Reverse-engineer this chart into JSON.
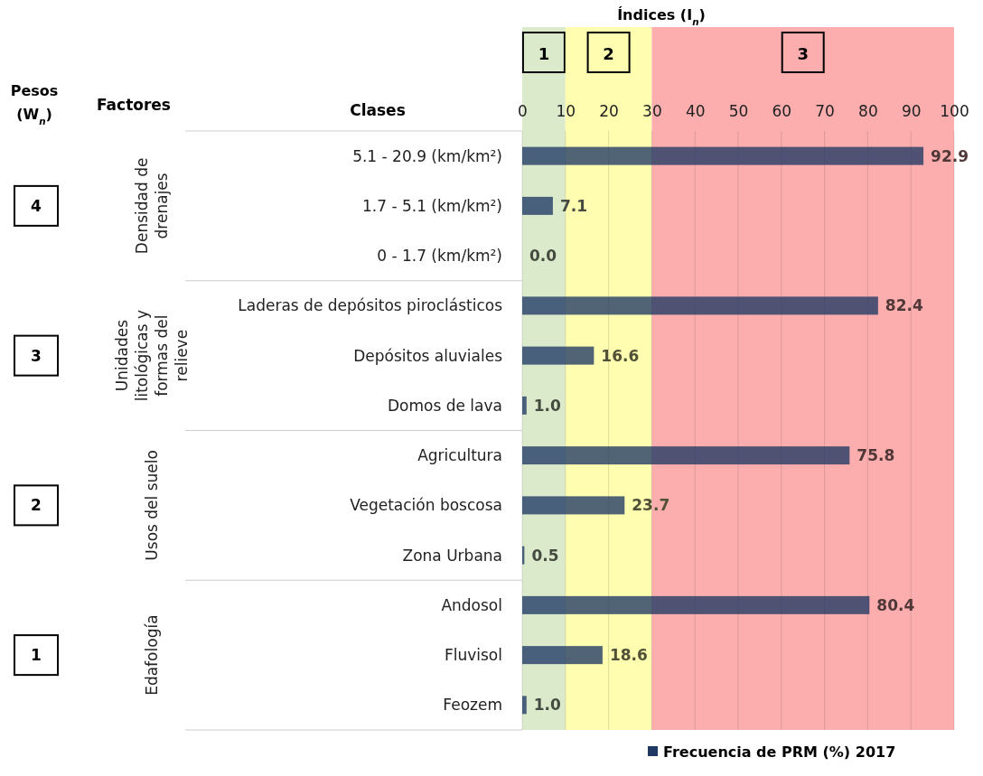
{
  "chart_data": {
    "type": "bar",
    "orientation": "horizontal",
    "categories": [
      "5.1 - 20.9 (km/km²)",
      "1.7 - 5.1 (km/km²)",
      "0 - 1.7 (km/km²)",
      "Laderas de depósitos piroclásticos",
      "Depósitos aluviales",
      "Domos de lava",
      "Agricultura",
      "Vegetación boscosa",
      "Zona Urbana",
      "Andosol",
      "Fluvisol",
      "Feozem"
    ],
    "series": [
      {
        "name": "Frecuencia de PRM (%) 2017",
        "color": "#1f3864",
        "values": [
          92.9,
          7.1,
          0.0,
          82.4,
          16.6,
          1.0,
          75.8,
          23.7,
          0.5,
          80.4,
          18.6,
          1.0
        ],
        "value_labels": [
          "92.9",
          "7.1",
          "0.0",
          "82.4",
          "16.6",
          "1.0",
          "75.8",
          "23.7",
          "0.5",
          "80.4",
          "18.6",
          "1.0"
        ]
      }
    ],
    "xlim": [
      0,
      100
    ],
    "xticks": [
      0,
      10,
      20,
      30,
      40,
      50,
      60,
      70,
      80,
      90,
      100
    ],
    "bands": [
      {
        "axis": "x",
        "from": 0,
        "to": 10,
        "label": "1",
        "color": "#dbeacb"
      },
      {
        "axis": "x",
        "from": 10,
        "to": 30,
        "label": "2",
        "color": "#fefdb0"
      },
      {
        "axis": "x",
        "from": 30,
        "to": 100,
        "label": "3",
        "color": "#fcaeae"
      }
    ],
    "annotations": [
      "Índices (I$_{n}$)",
      "Pesos (W$_{n}$)",
      "Factores",
      "Clases",
      "4",
      "Densidad de drenajes",
      "3",
      "Unidades litológicas y formas del relieve",
      "2",
      "Usos del suelo",
      "1",
      "Edafología"
    ],
    "grid": "x",
    "legend": "bottom"
  }
}
